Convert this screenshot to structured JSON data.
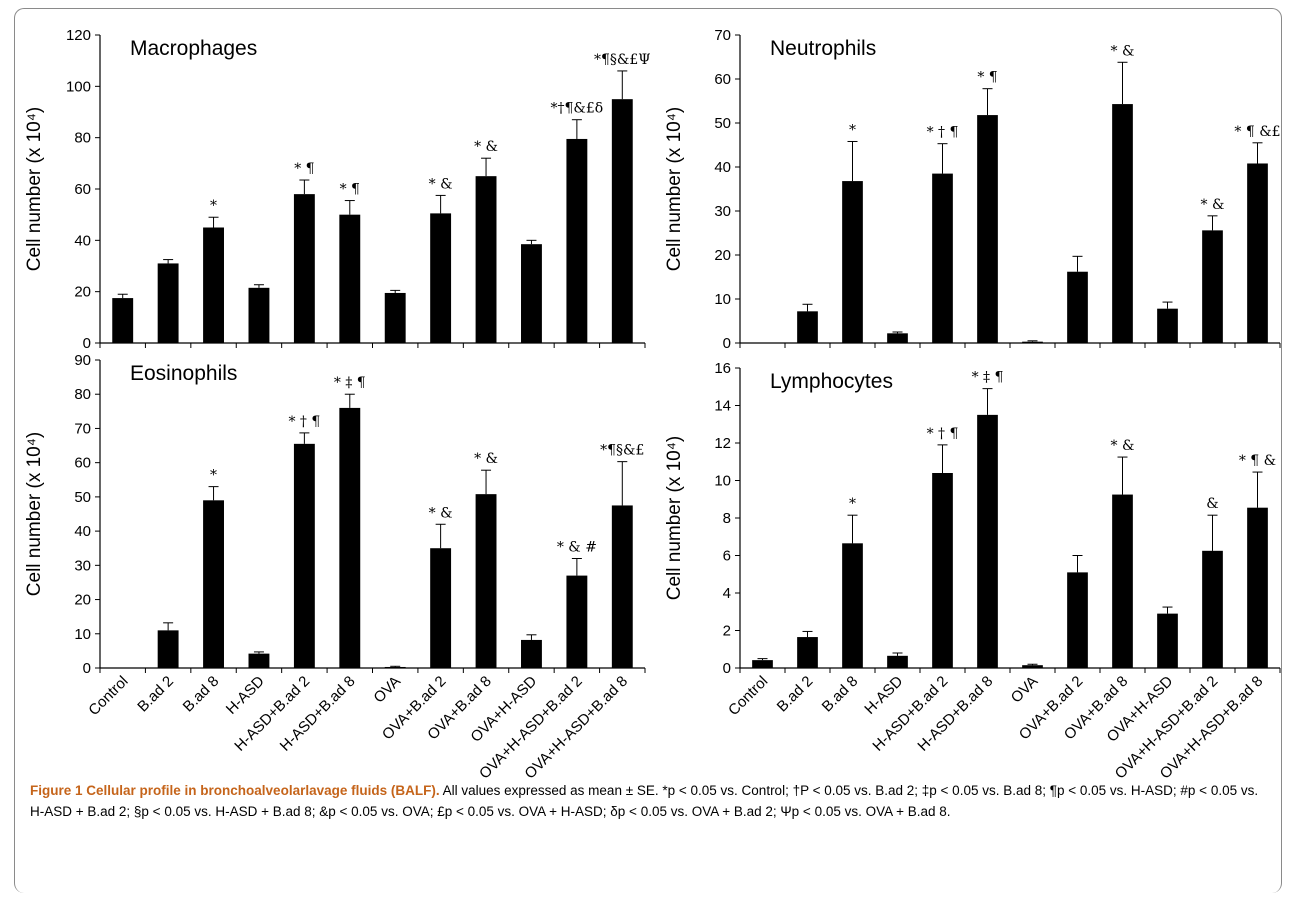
{
  "figure": {
    "caption_label": "Figure 1",
    "caption_title": "Cellular profile in bronchoalveolarlavage fluids (BALF).",
    "caption_text": "All values expressed as mean ± SE. *p < 0.05 vs. Control; †P < 0.05 vs. B.ad 2; ‡p < 0.05 vs. B.ad 8; ¶p < 0.05 vs. H-ASD; #p < 0.05 vs. H-ASD + B.ad 2; §p < 0.05 vs. H-ASD + B.ad 8; &p < 0.05 vs. OVA; £p < 0.05 vs. OVA + H-ASD; δp < 0.05 vs. OVA + B.ad 2; Ψp < 0.05 vs. OVA + B.ad 8."
  },
  "chart_data": [
    {
      "type": "bar",
      "title": "Macrophages",
      "ylabel": "Cell number (x 10⁴)",
      "ylim": [
        0,
        120
      ],
      "yticks": [
        0,
        20,
        40,
        60,
        80,
        100,
        120
      ],
      "categories": [
        "Control",
        "B.ad 2",
        "B.ad 8",
        "H-ASD",
        "H-ASD+B.ad 2",
        "H-ASD+B.ad 8",
        "OVA",
        "OVA+B.ad 2",
        "OVA+B.ad 8",
        "OVA+H-ASD",
        "OVA+H-ASD+B.ad 2",
        "OVA+H-ASD+B.ad 8"
      ],
      "values": [
        17.5,
        31,
        45,
        21.5,
        58,
        50,
        19.5,
        50.5,
        65,
        38.5,
        79.5,
        95
      ],
      "errors": [
        1.5,
        1.5,
        4,
        1.2,
        5.5,
        5.5,
        1,
        7,
        7,
        1.5,
        7.5,
        11
      ],
      "annotations": [
        "",
        "",
        "*",
        "",
        "* ¶",
        "* ¶",
        "",
        "* &",
        "* &",
        "",
        "*†¶&£δ",
        "*¶§&£Ψ"
      ],
      "show_xlabels": false
    },
    {
      "type": "bar",
      "title": "Neutrophils",
      "ylabel": "Cell number (x 10⁴)",
      "ylim": [
        0,
        70
      ],
      "yticks": [
        0,
        10,
        20,
        30,
        40,
        50,
        60,
        70
      ],
      "categories": [
        "Control",
        "B.ad 2",
        "B.ad 8",
        "H-ASD",
        "H-ASD+B.ad 2",
        "H-ASD+B.ad 8",
        "OVA",
        "OVA+B.ad 2",
        "OVA+B.ad 8",
        "OVA+H-ASD",
        "OVA+H-ASD+B.ad 2",
        "OVA+H-ASD+B.ad 8"
      ],
      "values": [
        0,
        7.2,
        36.8,
        2.2,
        38.5,
        51.8,
        0.3,
        16.2,
        54.3,
        7.8,
        25.6,
        40.8
      ],
      "errors": [
        0,
        1.6,
        9,
        0.3,
        6.8,
        6,
        0.2,
        3.5,
        9.5,
        1.5,
        3.3,
        4.7
      ],
      "annotations": [
        "",
        "",
        "*",
        "",
        "* † ¶",
        "* ¶",
        "",
        "",
        "* &",
        "",
        "* &",
        "* ¶ &£"
      ],
      "show_xlabels": false
    },
    {
      "type": "bar",
      "title": "Eosinophils",
      "ylabel": "Cell number (x 10⁴)",
      "ylim": [
        0,
        90
      ],
      "yticks": [
        0,
        10,
        20,
        30,
        40,
        50,
        60,
        70,
        80,
        90
      ],
      "categories": [
        "Control",
        "B.ad 2",
        "B.ad 8",
        "H-ASD",
        "H-ASD+B.ad 2",
        "H-ASD+B.ad 8",
        "OVA",
        "OVA+B.ad 2",
        "OVA+B.ad 8",
        "OVA+H-ASD",
        "OVA+H-ASD+B.ad 2",
        "OVA+H-ASD+B.ad 8"
      ],
      "values": [
        0,
        11,
        49,
        4.2,
        65.5,
        76,
        0.3,
        35,
        50.8,
        8.2,
        27,
        47.5
      ],
      "errors": [
        0,
        2.2,
        4,
        0.5,
        3.2,
        4,
        0.2,
        7,
        7,
        1.5,
        5,
        12.8
      ],
      "annotations": [
        "",
        "",
        "*",
        "",
        "* † ¶",
        "* ‡ ¶",
        "",
        "* &",
        "* &",
        "",
        "* & #",
        "*¶§&£"
      ],
      "show_xlabels": true
    },
    {
      "type": "bar",
      "title": "Lymphocytes",
      "ylabel": "Cell number (x 10⁴)",
      "ylim": [
        0,
        16
      ],
      "yticks": [
        0,
        2,
        4,
        6,
        8,
        10,
        12,
        14,
        16
      ],
      "categories": [
        "Control",
        "B.ad 2",
        "B.ad 8",
        "H-ASD",
        "H-ASD+B.ad 2",
        "H-ASD+B.ad 8",
        "OVA",
        "OVA+B.ad 2",
        "OVA+B.ad 8",
        "OVA+H-ASD",
        "OVA+H-ASD+B.ad 2",
        "OVA+H-ASD+B.ad 8"
      ],
      "values": [
        0.42,
        1.65,
        6.65,
        0.65,
        10.4,
        13.5,
        0.15,
        5.1,
        9.25,
        2.9,
        6.25,
        8.55
      ],
      "errors": [
        0.08,
        0.3,
        1.5,
        0.15,
        1.5,
        1.4,
        0.05,
        0.9,
        2,
        0.35,
        1.9,
        1.9
      ],
      "annotations": [
        "",
        "",
        "*",
        "",
        "* † ¶",
        "* ‡ ¶",
        "",
        "",
        "* &",
        "",
        "&",
        "* ¶ &"
      ],
      "show_xlabels": true
    }
  ]
}
